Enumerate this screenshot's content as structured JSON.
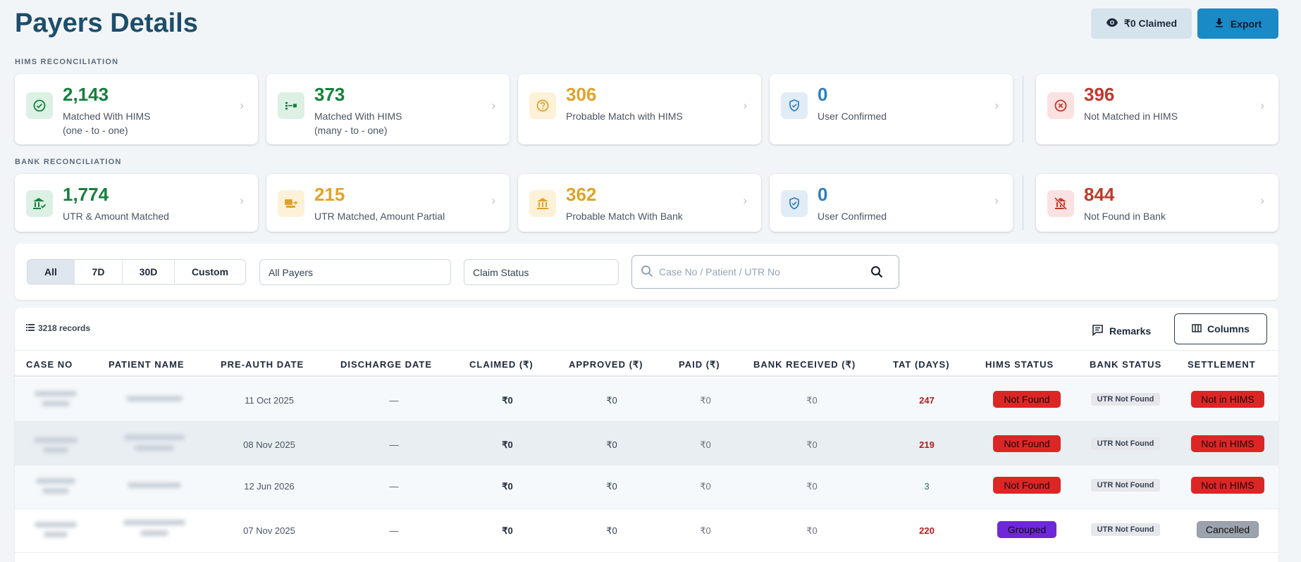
{
  "header": {
    "title": "Payers Details",
    "claimed_label": "₹0 Claimed",
    "export_label": "Export"
  },
  "hims": {
    "section_label": "HIMS RECONCILIATION",
    "cards": [
      {
        "value": "2,143",
        "label": "Matched With HIMS",
        "sublabel": "(one - to - one)",
        "color": "#15803d",
        "icon": "check-circle-icon"
      },
      {
        "value": "373",
        "label": "Matched With HIMS",
        "sublabel": "(many - to - one)",
        "color": "#15803d",
        "icon": "many-to-one-icon"
      },
      {
        "value": "306",
        "label": "Probable Match with HIMS",
        "sublabel": "",
        "color": "#e0a22a",
        "icon": "question-circle-icon"
      },
      {
        "value": "0",
        "label": "User Confirmed",
        "sublabel": "",
        "color": "#2f7fc0",
        "icon": "shield-check-icon"
      },
      {
        "value": "396",
        "label": "Not Matched in HIMS",
        "sublabel": "",
        "color": "#c0392b",
        "icon": "x-circle-icon"
      }
    ]
  },
  "bank": {
    "section_label": "BANK RECONCILIATION",
    "cards": [
      {
        "value": "1,774",
        "label": "UTR & Amount Matched",
        "color": "#15803d",
        "icon": "bank-check-icon"
      },
      {
        "value": "215",
        "label": "UTR Matched, Amount Partial",
        "color": "#e0a22a",
        "icon": "payment-partial-icon"
      },
      {
        "value": "362",
        "label": "Probable Match With Bank",
        "color": "#e0a22a",
        "icon": "bank-icon"
      },
      {
        "value": "0",
        "label": "User Confirmed",
        "color": "#2f7fc0",
        "icon": "shield-check-icon"
      },
      {
        "value": "844",
        "label": "Not Found in Bank",
        "color": "#c0392b",
        "icon": "bank-off-icon"
      }
    ]
  },
  "filters": {
    "periods": [
      "All",
      "7D",
      "30D",
      "Custom"
    ],
    "active_period": "All",
    "payer_select": "All Payers",
    "status_select": "Claim Status",
    "search_placeholder": "Case No / Patient / UTR No"
  },
  "table": {
    "records_label": "3218 records",
    "remarks_label": "Remarks",
    "columns_label": "Columns",
    "headers": [
      "CASE NO",
      "PATIENT NAME",
      "PRE-AUTH DATE",
      "DISCHARGE DATE",
      "CLAIMED (₹)",
      "APPROVED (₹)",
      "PAID (₹)",
      "BANK RECEIVED (₹)",
      "TAT (DAYS)",
      "HIMS STATUS",
      "BANK STATUS",
      "SETTLEMENT"
    ],
    "rows": [
      {
        "preauth": "11 Oct 2025",
        "discharge": "—",
        "claimed": "₹0",
        "approved": "₹0",
        "paid": "₹0",
        "bank_received": "₹0",
        "tat": "247",
        "tat_color": "#b91c1c",
        "hims_status": "Not Found",
        "hims_style": "red",
        "bank_status": "UTR Not Found",
        "settlement": "Not in HIMS",
        "settlement_style": "red"
      },
      {
        "preauth": "08 Nov 2025",
        "discharge": "—",
        "claimed": "₹0",
        "approved": "₹0",
        "paid": "₹0",
        "bank_received": "₹0",
        "tat": "219",
        "tat_color": "#b91c1c",
        "hims_status": "Not Found",
        "hims_style": "red",
        "bank_status": "UTR Not Found",
        "settlement": "Not in HIMS",
        "settlement_style": "red"
      },
      {
        "preauth": "12 Jun 2026",
        "discharge": "—",
        "claimed": "₹0",
        "approved": "₹0",
        "paid": "₹0",
        "bank_received": "₹0",
        "tat": "3",
        "tat_color": "#0f766e",
        "hims_status": "Not Found",
        "hims_style": "red",
        "bank_status": "UTR Not Found",
        "settlement": "Not in HIMS",
        "settlement_style": "red"
      },
      {
        "preauth": "07 Nov 2025",
        "discharge": "—",
        "claimed": "₹0",
        "approved": "₹0",
        "paid": "₹0",
        "bank_received": "₹0",
        "tat": "220",
        "tat_color": "#b91c1c",
        "hims_status": "Grouped",
        "hims_style": "purple",
        "bank_status": "UTR Not Found",
        "settlement": "Cancelled",
        "settlement_style": "grey"
      }
    ]
  }
}
